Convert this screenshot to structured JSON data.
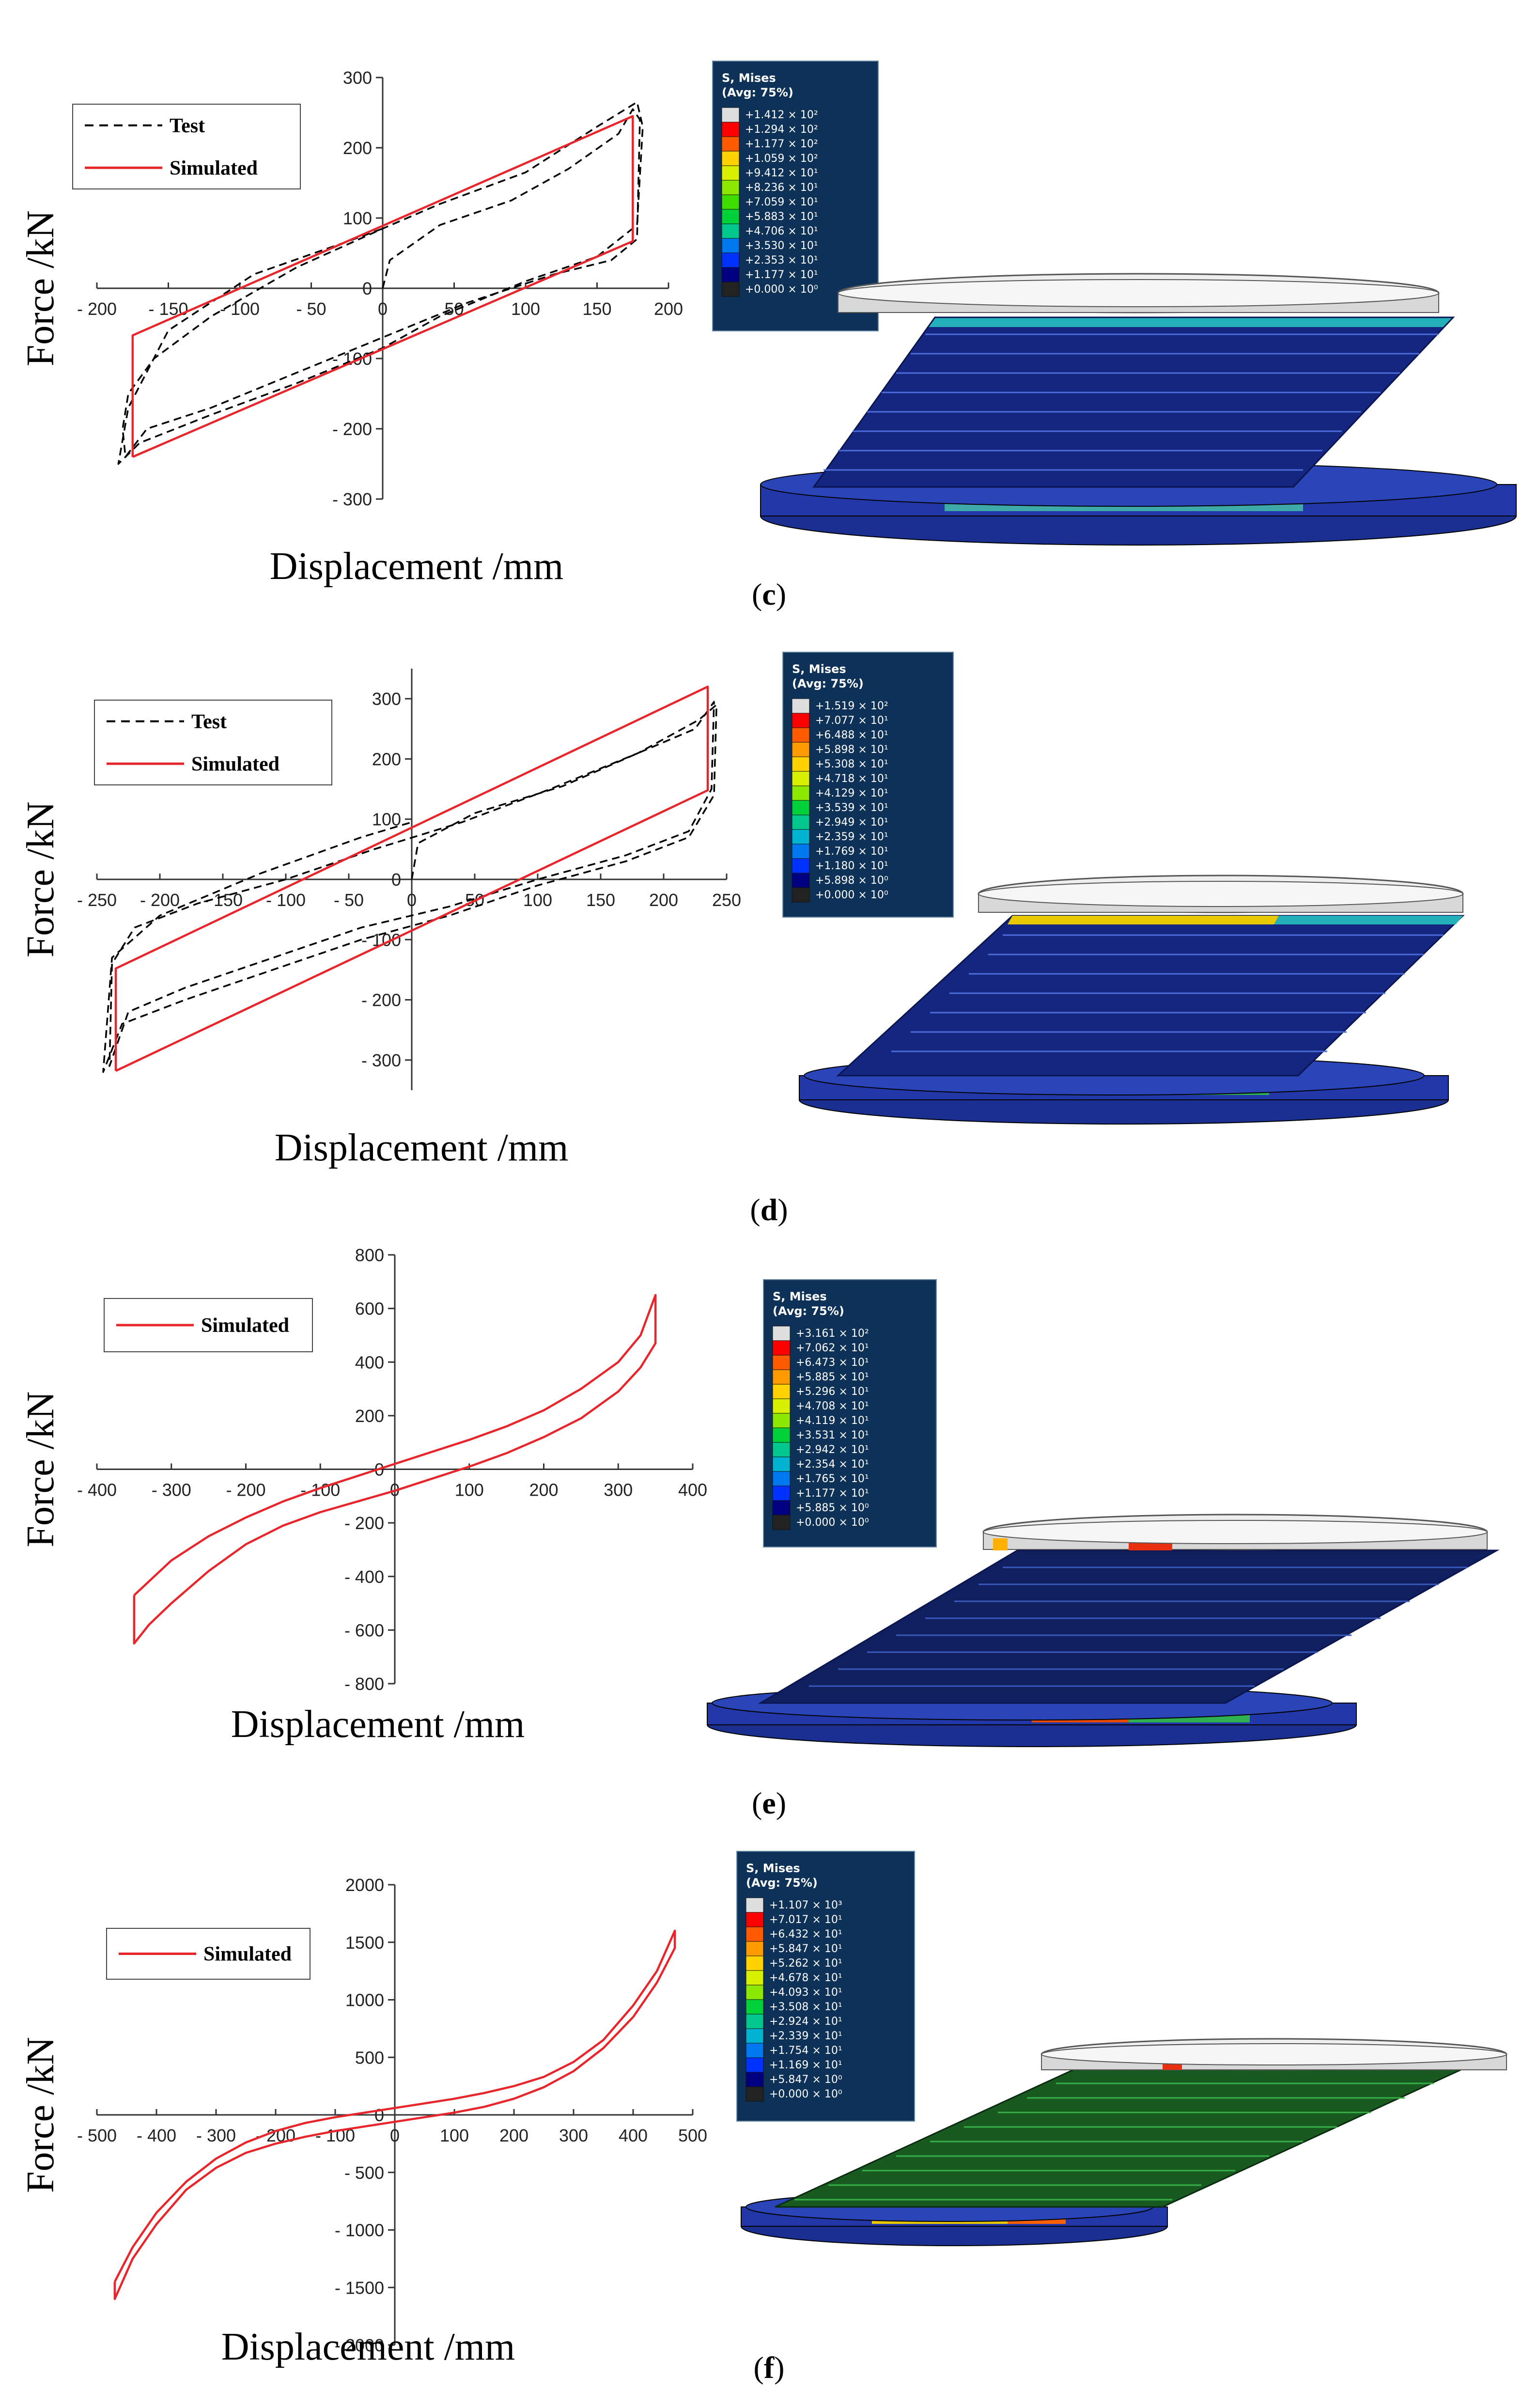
{
  "panels": [
    {
      "id": "c",
      "caption": "c",
      "chart_data": {
        "type": "line",
        "title": "",
        "xlabel": "Displacement  /mm",
        "ylabel": "Force  /kN",
        "xlim": [
          -200,
          200
        ],
        "ylim": [
          -300,
          300
        ],
        "xticks": [
          -200,
          -150,
          -100,
          -50,
          0,
          50,
          100,
          150,
          200
        ],
        "yticks": [
          -300,
          -200,
          -100,
          0,
          100,
          200,
          300
        ],
        "xtick_labels": [
          "- 200",
          "- 150",
          "- 100",
          "- 50",
          "0",
          "50",
          "100",
          "150",
          "200"
        ],
        "ytick_labels": [
          "- 300",
          "- 200",
          "- 100",
          "0",
          "100",
          "200",
          "300"
        ],
        "legend": [
          "Test",
          "Simulated"
        ],
        "series": [
          {
            "name": "Test",
            "style": "dashed",
            "color": "#000000",
            "x": [
              0,
              5,
              40,
              90,
              130,
              165,
              175,
              180,
              178,
              160,
              120,
              60,
              0,
              -60,
              -120,
              -165,
              -180,
              -182,
              -178,
              -160,
              -120,
              -60,
              0,
              40,
              100,
              150,
              178,
              182,
              178,
              150,
              100,
              40,
              0,
              -60,
              -120,
              -170,
              -185,
              -178,
              -150,
              -90,
              -20,
              0
            ],
            "y": [
              0,
              40,
              90,
              125,
              170,
              220,
              255,
              240,
              70,
              40,
              20,
              -20,
              -70,
              -120,
              -170,
              -200,
              -240,
              -200,
              -150,
              -100,
              -40,
              30,
              85,
              120,
              165,
              230,
              265,
              230,
              90,
              45,
              10,
              -40,
              -85,
              -135,
              -180,
              -220,
              -250,
              -170,
              -60,
              20,
              70,
              85
            ]
          },
          {
            "name": "Simulated",
            "style": "solid",
            "color": "#e8252b",
            "x": [
              -175,
              175,
              175,
              -175,
              -175
            ],
            "y": [
              -240,
              67,
              245,
              -67,
              -240
            ]
          }
        ]
      },
      "colorbar": {
        "title_1": "S, Mises",
        "title_2": "(Avg: 75%)",
        "labels": [
          "+1.412 × 10²",
          "+1.294 × 10²",
          "+1.177 × 10²",
          "+1.059 × 10²",
          "+9.412 × 10¹",
          "+8.236 × 10¹",
          "+7.059 × 10¹",
          "+5.883 × 10¹",
          "+4.706 × 10¹",
          "+3.530 × 10¹",
          "+2.353 × 10¹",
          "+1.177 × 10¹",
          "+0.000 × 10⁰"
        ]
      }
    },
    {
      "id": "d",
      "caption": "d",
      "chart_data": {
        "type": "line",
        "title": "",
        "xlabel": "Displacement  /mm",
        "ylabel": "Force  /kN",
        "xlim": [
          -250,
          250
        ],
        "ylim": [
          -350,
          350
        ],
        "xticks": [
          -250,
          -200,
          -150,
          -100,
          -50,
          0,
          50,
          100,
          150,
          200,
          250
        ],
        "yticks": [
          -300,
          -200,
          -100,
          0,
          100,
          200,
          300
        ],
        "xtick_labels": [
          "- 250",
          "- 200",
          "- 150",
          "- 100",
          "- 50",
          "0",
          "50",
          "100",
          "150",
          "200",
          "250"
        ],
        "ytick_labels": [
          "- 300",
          "- 200",
          "- 100",
          "0",
          "100",
          "200",
          "300"
        ],
        "legend": [
          "Test",
          "Simulated"
        ],
        "series": [
          {
            "name": "Test",
            "style": "dashed",
            "color": "#000000",
            "x": [
              0,
              5,
              50,
              120,
              180,
              225,
              240,
              238,
              220,
              170,
              100,
              30,
              -40,
              -110,
              -180,
              -225,
              -240,
              -238,
              -220,
              -170,
              -100,
              -30,
              40,
              110,
              180,
              228,
              242,
              240,
              220,
              170,
              100,
              30,
              -40,
              -110,
              -180,
              -230,
              -245,
              -238,
              -200,
              -120,
              -40,
              0
            ],
            "y": [
              0,
              60,
              110,
              155,
              210,
              250,
              295,
              150,
              80,
              40,
              0,
              -45,
              -80,
              -130,
              -180,
              -220,
              -310,
              -140,
              -80,
              -40,
              0,
              50,
              95,
              150,
              210,
              265,
              290,
              140,
              70,
              30,
              -10,
              -60,
              -100,
              -150,
              -200,
              -240,
              -320,
              -130,
              -60,
              10,
              70,
              95
            ]
          },
          {
            "name": "Simulated",
            "style": "solid",
            "color": "#e8252b",
            "x": [
              -235,
              235,
              235,
              -235,
              -235
            ],
            "y": [
              -318,
              148,
              320,
              -148,
              -318
            ]
          }
        ]
      },
      "colorbar": {
        "title_1": "S, Mises",
        "title_2": "(Avg: 75%)",
        "labels": [
          "+1.519 × 10²",
          "+7.077 × 10¹",
          "+6.488 × 10¹",
          "+5.898 × 10¹",
          "+5.308 × 10¹",
          "+4.718 × 10¹",
          "+4.129 × 10¹",
          "+3.539 × 10¹",
          "+2.949 × 10¹",
          "+2.359 × 10¹",
          "+1.769 × 10¹",
          "+1.180 × 10¹",
          "+5.898 × 10⁰",
          "+0.000 × 10⁰"
        ]
      }
    },
    {
      "id": "e",
      "caption": "e",
      "chart_data": {
        "type": "line",
        "title": "",
        "xlabel": "Displacement  /mm",
        "ylabel": "Force  /kN",
        "xlim": [
          -400,
          400
        ],
        "ylim": [
          -800,
          800
        ],
        "xticks": [
          -400,
          -300,
          -200,
          -100,
          0,
          100,
          200,
          300,
          400
        ],
        "yticks": [
          -800,
          -600,
          -400,
          -200,
          0,
          200,
          400,
          600,
          800
        ],
        "xtick_labels": [
          "- 400",
          "- 300",
          "- 200",
          "- 100",
          "0",
          "100",
          "200",
          "300",
          "400"
        ],
        "ytick_labels": [
          "- 800",
          "- 600",
          "- 400",
          "- 200",
          "0",
          "200",
          "400",
          "600",
          "800"
        ],
        "legend": [
          "Simulated"
        ],
        "series": [
          {
            "name": "Simulated",
            "style": "solid",
            "color": "#e8252b",
            "x": [
              -350,
              -300,
              -250,
              -200,
              -150,
              -100,
              -50,
              0,
              50,
              100,
              150,
              200,
              250,
              300,
              330,
              350,
              350,
              330,
              300,
              250,
              200,
              150,
              100,
              50,
              0,
              -50,
              -100,
              -150,
              -200,
              -250,
              -300,
              -330,
              -350,
              -350
            ],
            "y": [
              -470,
              -340,
              -250,
              -180,
              -120,
              -70,
              -25,
              20,
              65,
              110,
              160,
              220,
              300,
              400,
              500,
              650,
              470,
              380,
              290,
              190,
              120,
              60,
              10,
              -35,
              -80,
              -120,
              -160,
              -210,
              -280,
              -380,
              -500,
              -580,
              -650,
              -470
            ]
          }
        ]
      },
      "colorbar": {
        "title_1": "S, Mises",
        "title_2": "(Avg: 75%)",
        "labels": [
          "+3.161 × 10²",
          "+7.062 × 10¹",
          "+6.473 × 10¹",
          "+5.885 × 10¹",
          "+5.296 × 10¹",
          "+4.708 × 10¹",
          "+4.119 × 10¹",
          "+3.531 × 10¹",
          "+2.942 × 10¹",
          "+2.354 × 10¹",
          "+1.765 × 10¹",
          "+1.177 × 10¹",
          "+5.885 × 10⁰",
          "+0.000 × 10⁰"
        ]
      }
    },
    {
      "id": "f",
      "caption": "f",
      "chart_data": {
        "type": "line",
        "title": "",
        "xlabel": "Displacement  /mm",
        "ylabel": "Force  /kN",
        "xlim": [
          -500,
          500
        ],
        "ylim": [
          -2000,
          2000
        ],
        "xticks": [
          -500,
          -400,
          -300,
          -200,
          -100,
          0,
          100,
          200,
          300,
          400,
          500
        ],
        "yticks": [
          -2000,
          -1500,
          -1000,
          -500,
          0,
          500,
          1000,
          1500,
          2000
        ],
        "xtick_labels": [
          "- 500",
          "- 400",
          "- 300",
          "- 200",
          "- 100",
          "0",
          "100",
          "200",
          "300",
          "400",
          "500"
        ],
        "ytick_labels": [
          "- 2000",
          "- 1500",
          "- 1000",
          "- 500",
          "0",
          "500",
          "1000",
          "1500",
          "2000"
        ],
        "legend": [
          "Simulated"
        ],
        "series": [
          {
            "name": "Simulated",
            "style": "solid",
            "color": "#e8252b",
            "x": [
              -470,
              -440,
              -400,
              -350,
              -300,
              -250,
              -200,
              -150,
              -100,
              -50,
              0,
              50,
              100,
              150,
              200,
              250,
              300,
              350,
              400,
              440,
              470,
              470,
              440,
              400,
              350,
              300,
              250,
              200,
              150,
              100,
              50,
              0,
              -50,
              -100,
              -150,
              -200,
              -250,
              -300,
              -350,
              -400,
              -440,
              -470,
              -470
            ],
            "y": [
              -1450,
              -1150,
              -850,
              -580,
              -380,
              -240,
              -140,
              -70,
              -20,
              20,
              60,
              100,
              140,
              190,
              250,
              330,
              460,
              650,
              950,
              1250,
              1600,
              1450,
              1150,
              850,
              580,
              380,
              240,
              140,
              70,
              20,
              -20,
              -60,
              -100,
              -140,
              -190,
              -250,
              -330,
              -460,
              -650,
              -950,
              -1250,
              -1600,
              -1450
            ]
          }
        ]
      },
      "colorbar": {
        "title_1": "S, Mises",
        "title_2": "(Avg: 75%)",
        "labels": [
          "+1.107 × 10³",
          "+7.017 × 10¹",
          "+6.432 × 10¹",
          "+5.847 × 10¹",
          "+5.262 × 10¹",
          "+4.678 × 10¹",
          "+4.093 × 10¹",
          "+3.508 × 10¹",
          "+2.924 × 10¹",
          "+2.339 × 10¹",
          "+1.754 × 10¹",
          "+1.169 × 10¹",
          "+5.847 × 10⁰",
          "+0.000 × 10⁰"
        ]
      }
    }
  ],
  "colors": {
    "simulated": "#e8252b",
    "test": "#000000",
    "colorbar_bg": "#0d3157",
    "bearing_blue": "#1a2f8f",
    "bearing_green": "#2a8a3a",
    "plate_gray": "#e8e8e8",
    "contour_scale": [
      "#dedede",
      "#ff0000",
      "#ff5a00",
      "#ff9a00",
      "#ffd200",
      "#d8f000",
      "#8ce800",
      "#3fdc00",
      "#00d23a",
      "#00c88c",
      "#00b4d2",
      "#0078f0",
      "#0032ff",
      "#000080",
      "#222222"
    ]
  }
}
